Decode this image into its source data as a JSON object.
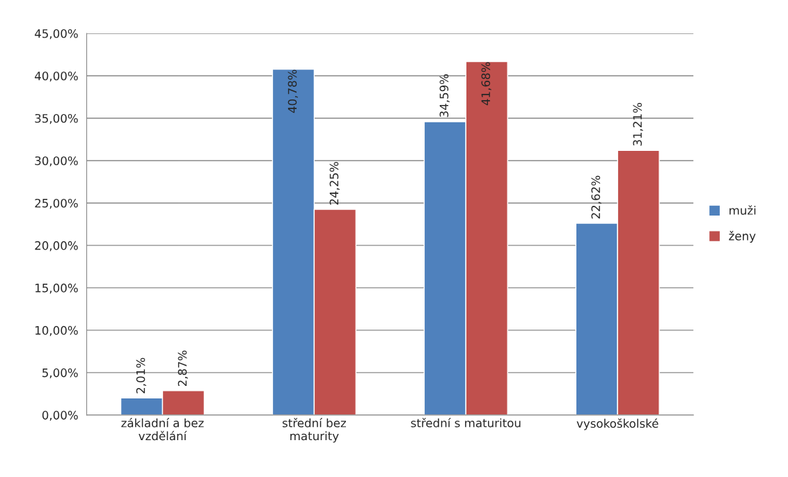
{
  "chart_data": {
    "type": "bar",
    "categories": [
      "základní a bez\nvzdělání",
      "střední bez\nmaturity",
      "střední s maturitou",
      "vysokoškolské"
    ],
    "series": [
      {
        "name": "muži",
        "color": "#4f81bd",
        "values": [
          2.01,
          40.78,
          34.59,
          22.62
        ],
        "value_labels": [
          "2,01%",
          "40,78%",
          "34,59%",
          "22,62%"
        ]
      },
      {
        "name": "ženy",
        "color": "#c0504d",
        "values": [
          2.87,
          24.25,
          41.68,
          31.21
        ],
        "value_labels": [
          "2,87%",
          "24,25%",
          "41,68%",
          "31,21%"
        ]
      }
    ],
    "ylim": [
      0,
      45
    ],
    "yticks": [
      {
        "value": 0,
        "label": "0,00%"
      },
      {
        "value": 5,
        "label": "5,00%"
      },
      {
        "value": 10,
        "label": "10,00%"
      },
      {
        "value": 15,
        "label": "15,00%"
      },
      {
        "value": 20,
        "label": "20,00%"
      },
      {
        "value": 25,
        "label": "25,00%"
      },
      {
        "value": 30,
        "label": "30,00%"
      },
      {
        "value": 35,
        "label": "35,00%"
      },
      {
        "value": 40,
        "label": "40,00%"
      },
      {
        "value": 45,
        "label": "45,00%"
      }
    ],
    "grid": "y",
    "legend": "right"
  }
}
